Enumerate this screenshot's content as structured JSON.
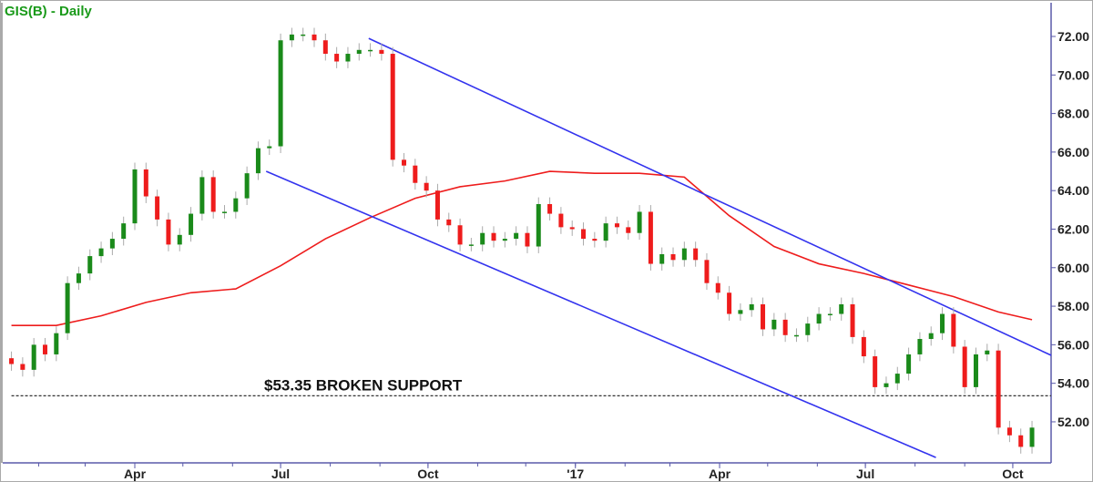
{
  "chart_data": {
    "type": "candlestick",
    "title": "GIS(B) - Daily",
    "ylim": [
      49.87,
      73.75
    ],
    "xlim": [
      "2016-01-09",
      "2017-10-25"
    ],
    "y_ticks": [
      "52.00",
      "54.00",
      "56.00",
      "58.00",
      "60.00",
      "62.00",
      "64.00",
      "66.00",
      "68.00",
      "70.00",
      "72.00"
    ],
    "x_ticks": [
      {
        "date": "2016-04-01",
        "label": "Apr"
      },
      {
        "date": "2016-07-01",
        "label": "Jul"
      },
      {
        "date": "2016-10-01",
        "label": "Oct"
      },
      {
        "date": "2017-01-01",
        "label": "'17"
      },
      {
        "date": "2017-04-01",
        "label": "Apr"
      },
      {
        "date": "2017-07-01",
        "label": "Jul"
      },
      {
        "date": "2017-10-01",
        "label": "Oct"
      }
    ],
    "grid": false,
    "colors": {
      "title": "#1a9a1a",
      "up": "#1a8a1a",
      "down": "#ee1c1c",
      "wick": "#aaaaaa",
      "ma": "#ee1c1c",
      "trend": "#3333ee",
      "axis": "#5a5aaa",
      "support": "#333333"
    },
    "dates": [
      "2016-01-15",
      "2016-01-22",
      "2016-01-29",
      "2016-02-05",
      "2016-02-12",
      "2016-02-19",
      "2016-02-26",
      "2016-03-04",
      "2016-03-11",
      "2016-03-18",
      "2016-03-25",
      "2016-04-01",
      "2016-04-08",
      "2016-04-15",
      "2016-04-22",
      "2016-04-29",
      "2016-05-06",
      "2016-05-13",
      "2016-05-20",
      "2016-05-27",
      "2016-06-03",
      "2016-06-10",
      "2016-06-17",
      "2016-06-24",
      "2016-07-01",
      "2016-07-08",
      "2016-07-15",
      "2016-07-22",
      "2016-07-29",
      "2016-08-05",
      "2016-08-12",
      "2016-08-19",
      "2016-08-26",
      "2016-09-02",
      "2016-09-09",
      "2016-09-16",
      "2016-09-23",
      "2016-09-30",
      "2016-10-07",
      "2016-10-14",
      "2016-10-21",
      "2016-10-28",
      "2016-11-04",
      "2016-11-11",
      "2016-11-18",
      "2016-11-25",
      "2016-12-02",
      "2016-12-09",
      "2016-12-16",
      "2016-12-23",
      "2016-12-30",
      "2017-01-06",
      "2017-01-13",
      "2017-01-20",
      "2017-01-27",
      "2017-02-03",
      "2017-02-10",
      "2017-02-17",
      "2017-02-24",
      "2017-03-03",
      "2017-03-10",
      "2017-03-17",
      "2017-03-24",
      "2017-03-31",
      "2017-04-07",
      "2017-04-14",
      "2017-04-21",
      "2017-04-28",
      "2017-05-05",
      "2017-05-12",
      "2017-05-19",
      "2017-05-26",
      "2017-06-02",
      "2017-06-09",
      "2017-06-16",
      "2017-06-23",
      "2017-06-30",
      "2017-07-07",
      "2017-07-14",
      "2017-07-21",
      "2017-07-28",
      "2017-08-04",
      "2017-08-11",
      "2017-08-18",
      "2017-08-25",
      "2017-09-01",
      "2017-09-08",
      "2017-09-15",
      "2017-09-22",
      "2017-09-29",
      "2017-10-06",
      "2017-10-13"
    ],
    "close": [
      55.0,
      54.7,
      56.0,
      55.5,
      56.6,
      59.2,
      59.7,
      60.6,
      61.0,
      61.5,
      62.3,
      65.1,
      63.7,
      62.5,
      61.2,
      61.7,
      62.8,
      64.7,
      62.9,
      62.9,
      63.6,
      64.9,
      66.2,
      66.3,
      71.8,
      72.1,
      72.1,
      71.8,
      71.1,
      70.7,
      71.1,
      71.3,
      71.3,
      71.1,
      65.6,
      65.3,
      64.4,
      64.0,
      62.5,
      62.2,
      61.2,
      61.2,
      61.8,
      61.4,
      61.5,
      61.8,
      61.1,
      63.3,
      62.8,
      62.1,
      62.0,
      61.5,
      61.4,
      62.3,
      62.1,
      61.8,
      62.9,
      60.2,
      60.7,
      60.4,
      61.0,
      60.4,
      59.2,
      58.7,
      57.6,
      57.8,
      58.1,
      56.8,
      57.3,
      56.5,
      56.5,
      57.1,
      57.6,
      57.6,
      58.1,
      56.4,
      55.4,
      53.8,
      54.0,
      54.5,
      55.5,
      56.3,
      56.6,
      57.6,
      55.9,
      53.8,
      55.5,
      55.7,
      51.7,
      51.3,
      50.7,
      51.7
    ],
    "moving_average": {
      "dates": [
        "2016-01-15",
        "2016-02-12",
        "2016-03-11",
        "2016-04-08",
        "2016-05-06",
        "2016-06-03",
        "2016-07-01",
        "2016-07-29",
        "2016-08-26",
        "2016-09-23",
        "2016-10-21",
        "2016-11-18",
        "2016-12-16",
        "2017-01-13",
        "2017-02-10",
        "2017-03-10",
        "2017-04-07",
        "2017-05-05",
        "2017-06-02",
        "2017-06-30",
        "2017-07-28",
        "2017-08-25",
        "2017-09-22",
        "2017-10-13"
      ],
      "values": [
        57.0,
        57.0,
        57.5,
        58.2,
        58.7,
        58.9,
        60.1,
        61.5,
        62.6,
        63.6,
        64.2,
        64.5,
        65.0,
        64.9,
        64.9,
        64.7,
        62.7,
        61.1,
        60.2,
        59.7,
        59.1,
        58.5,
        57.7,
        57.3
      ]
    },
    "trendlines": [
      {
        "start": [
          "2016-08-25",
          71.9
        ],
        "end": [
          "2017-10-25",
          55.45
        ]
      },
      {
        "start": [
          "2016-06-22",
          65.0
        ],
        "end": [
          "2017-08-14",
          50.15
        ]
      }
    ],
    "support": {
      "value": 53.35,
      "start": "2016-01-15",
      "label": "$53.35 BROKEN SUPPORT"
    }
  }
}
